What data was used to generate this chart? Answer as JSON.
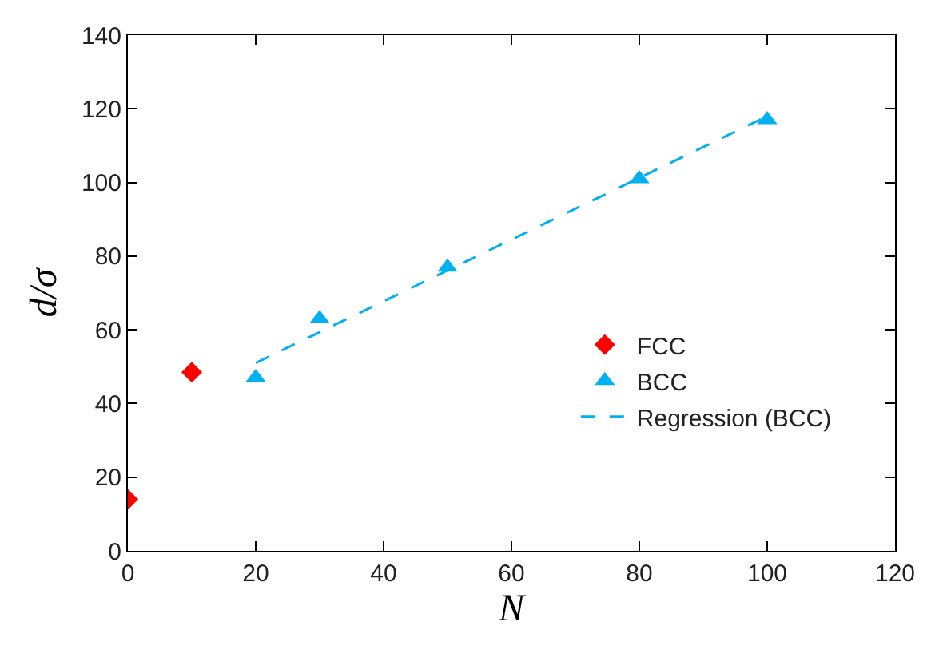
{
  "chart_data": {
    "type": "scatter",
    "xlabel": "N",
    "ylabel": "d/σ",
    "xlim": [
      0,
      120
    ],
    "xticks": [
      0,
      20,
      40,
      60,
      80,
      100,
      120
    ],
    "ylim": [
      0,
      140
    ],
    "yticks": [
      0,
      20,
      40,
      60,
      80,
      100,
      120,
      140
    ],
    "legend": "right",
    "series": [
      {
        "name": "FCC",
        "marker": "diamond",
        "color": "#ff0000",
        "x": [
          0,
          10
        ],
        "values": [
          14,
          48.5
        ]
      },
      {
        "name": "BCC",
        "marker": "triangle",
        "color": "#00b0f0",
        "x": [
          20,
          30,
          50,
          80,
          100
        ],
        "values": [
          47,
          63,
          77,
          101,
          117
        ]
      },
      {
        "name": "Regression (BCC)",
        "type": "line",
        "line_style": "dashed",
        "marker": "none",
        "color": "#00b0f0",
        "x": [
          20,
          100
        ],
        "values": [
          51,
          118
        ]
      }
    ]
  }
}
